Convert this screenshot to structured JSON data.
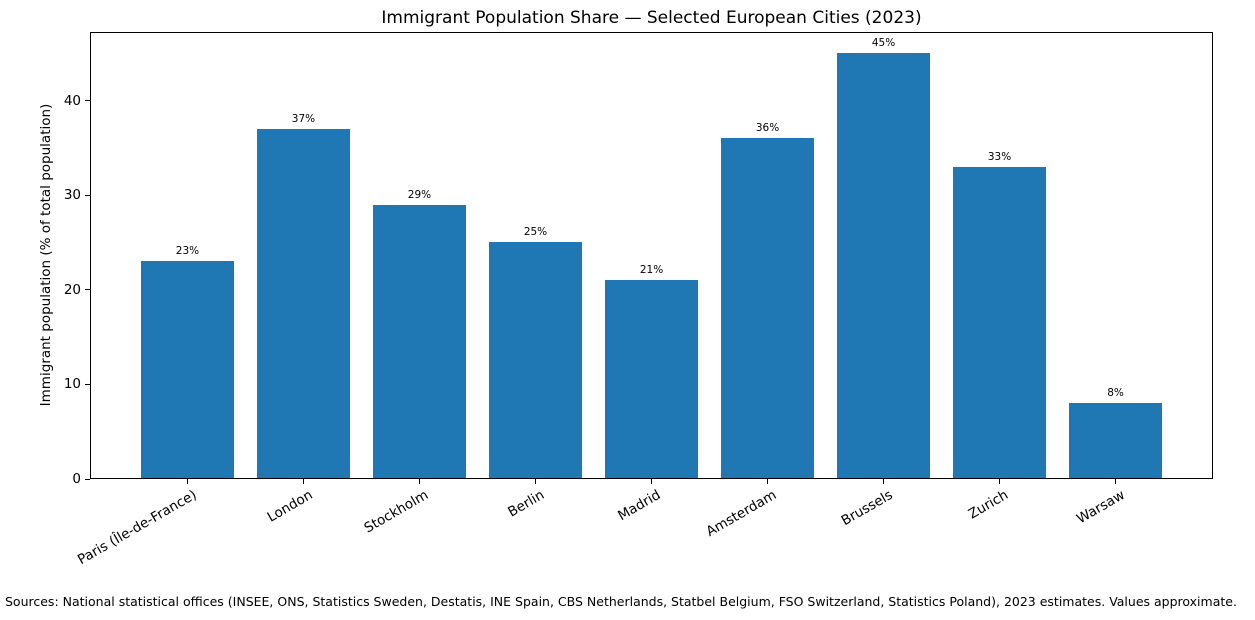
{
  "chart_data": {
    "type": "bar",
    "title": "Immigrant Population Share — Selected European Cities (2023)",
    "categories": [
      "Paris (Île-de-France)",
      "London",
      "Stockholm",
      "Berlin",
      "Madrid",
      "Amsterdam",
      "Brussels",
      "Zurich",
      "Warsaw"
    ],
    "values": [
      23,
      37,
      29,
      25,
      21,
      36,
      45,
      33,
      8
    ],
    "bar_labels": [
      "23%",
      "37%",
      "29%",
      "25%",
      "21%",
      "36%",
      "45%",
      "33%",
      "8%"
    ],
    "xlabel": "",
    "ylabel": "Immigrant population (% of total population)",
    "yticks": [
      0,
      10,
      20,
      30,
      40
    ],
    "ylim": [
      0,
      47.25
    ],
    "bar_color": "#1f77b4",
    "grid": false,
    "legend_position": "none",
    "x_tick_rotation_deg": 30
  },
  "footer": {
    "text": "Sources: National statistical offices (INSEE, ONS, Statistics Sweden, Destatis, INE Spain, CBS Netherlands, Statbel Belgium, FSO Switzerland, Statistics Poland), 2023 estimates. Values approximate."
  }
}
